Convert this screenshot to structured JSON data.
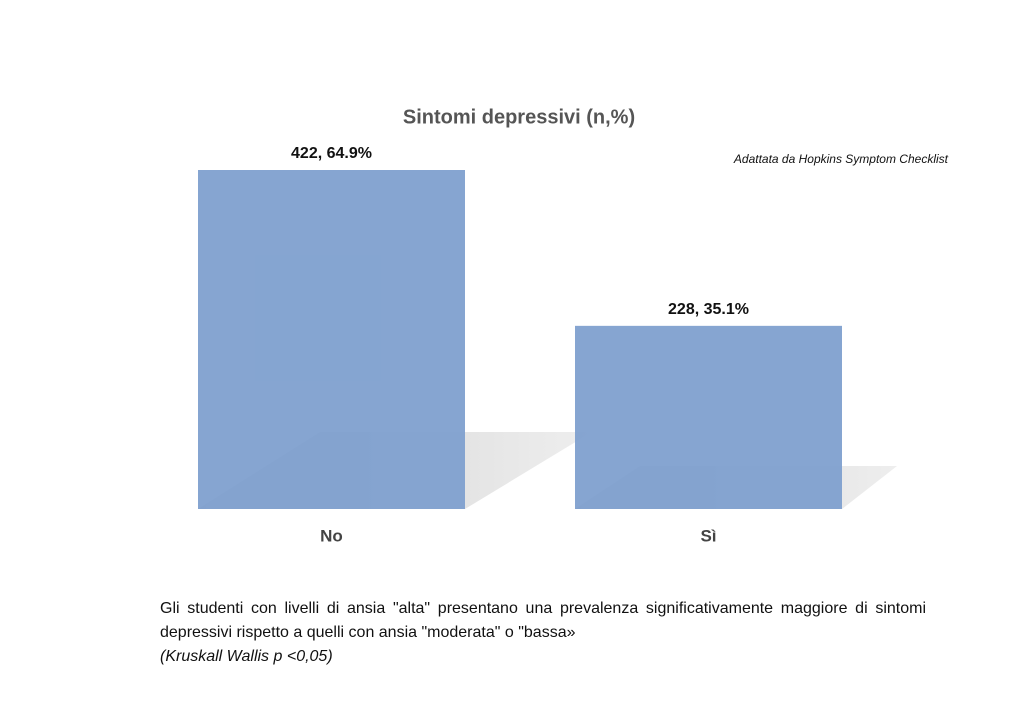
{
  "chart_data": {
    "type": "bar",
    "title": "Sintomi depressivi  (n,%)",
    "annotation": "Adattata da Hopkins Symptom Checklist",
    "categories": [
      "No",
      "Sì"
    ],
    "values": [
      422,
      228
    ],
    "value_labels": [
      "422, 64.9%",
      "228, 35.1%"
    ],
    "color": "#7fa0cf"
  },
  "caption": "Gli studenti con livelli di ansia \"alta\" presentano una prevalenza significativamente maggiore di sintomi depressivi rispetto a quelli con ansia \"moderata\" o \"bassa»",
  "note": "(Kruskall Wallis p <0,05)"
}
